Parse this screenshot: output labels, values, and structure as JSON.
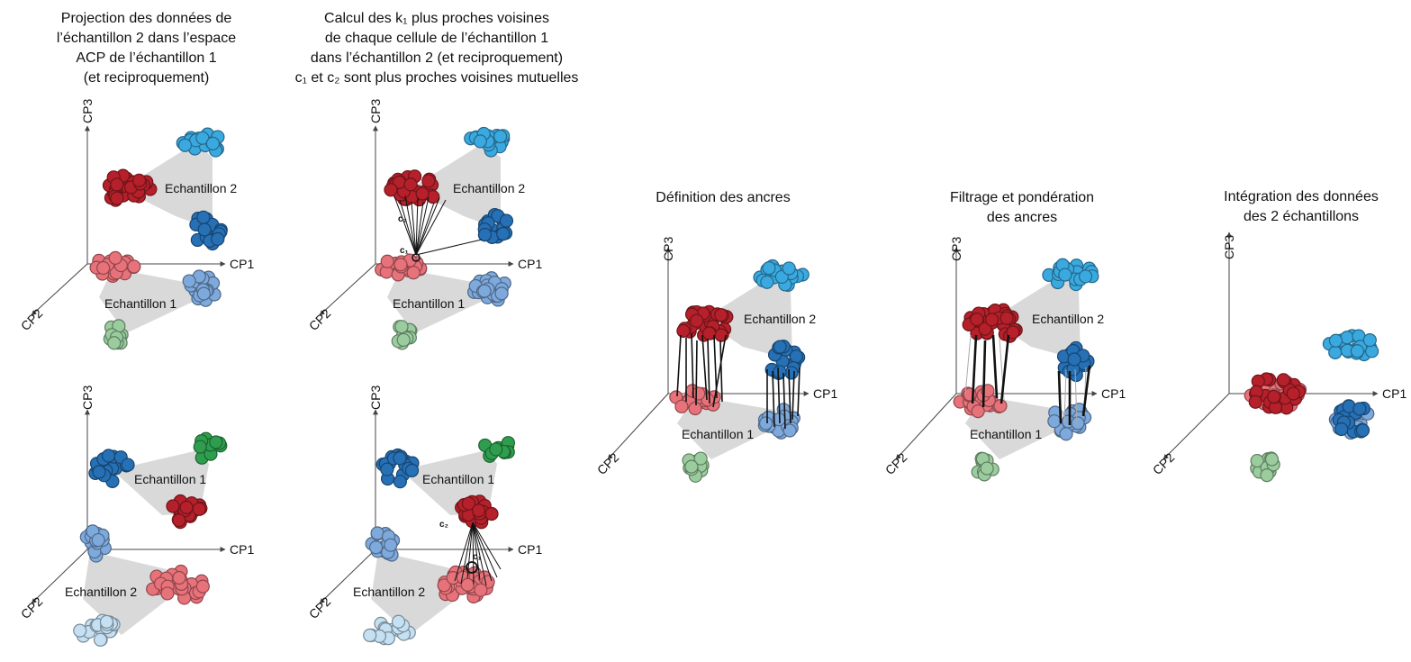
{
  "titles": {
    "projection": [
      "Projection des données de",
      "l’échantillon 2 dans l’espace",
      "ACP de l’échantillon 1",
      "(et reciproquement)"
    ],
    "knn": [
      "Calcul des k₁ plus proches voisines",
      "de chaque cellule de l’échantillon 1",
      "dans l’échantillon 2 (et reciproquement)",
      "c₁ et c₂ sont plus proches voisines mutuelles"
    ],
    "anchors": [
      "Définition des ancres"
    ],
    "filter": [
      "Filtrage et pondération",
      "des ancres"
    ],
    "integration": [
      "Intégration des données",
      "des 2 échantillons"
    ]
  },
  "axes": {
    "cp1": "CP1",
    "cp2": "CP2",
    "cp3": "CP3"
  },
  "labels": {
    "sample1": "Echantillon 1",
    "sample2": "Echantillon 2",
    "c1": "c₁",
    "c2": "c₂"
  },
  "colors": {
    "dark_red": "#b5202a",
    "light_red": "#e8727a",
    "dark_blue": "#2670b5",
    "light_blue": "#7ea9dc",
    "cyan": "#3aa9e0",
    "green": "#2e9e4e",
    "light_green": "#9acc9e",
    "pale_blue": "#c4e0f2",
    "gray_region": "#d9d9d9"
  }
}
